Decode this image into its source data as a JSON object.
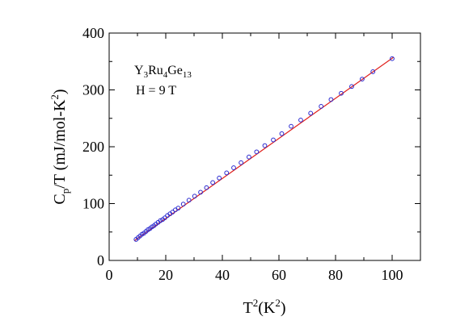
{
  "chart_data": {
    "type": "scatter",
    "xlabel": {
      "base": "T",
      "sup1": "2",
      "mid": "(K",
      "sup2": "2",
      "end": ")"
    },
    "ylabel": {
      "base": "C",
      "sub1": "p",
      "mid": "/T (mJ/mol-K",
      "sup1": "2",
      "end": ")"
    },
    "annotation": {
      "line1": {
        "p1": "Y",
        "s1": "3",
        "p2": "Ru",
        "s2": "4",
        "p3": "Ge",
        "s3": "13"
      },
      "line2": "H = 9 T"
    },
    "xlim": [
      0,
      110
    ],
    "ylim": [
      0,
      400
    ],
    "xticks": [
      0,
      20,
      40,
      60,
      80,
      100
    ],
    "yticks": [
      0,
      100,
      200,
      300,
      400
    ],
    "grid": false,
    "series": [
      {
        "marker": "open-circle",
        "color": "#2a2ad0",
        "x": [
          9.5,
          10.2,
          10.9,
          11.6,
          12.3,
          13.0,
          13.7,
          14.4,
          15.1,
          15.8,
          16.5,
          17.3,
          18.1,
          18.9,
          19.7,
          20.6,
          21.5,
          22.4,
          23.4,
          24.4,
          26.2,
          28.2,
          30.2,
          32.3,
          34.4,
          36.6,
          38.9,
          41.5,
          44.0,
          46.6,
          49.4,
          52.1,
          55.0,
          58.0,
          61.0,
          64.3,
          67.7,
          71.2,
          74.9,
          78.4,
          82.0,
          85.7,
          89.4,
          93.2,
          100.0
        ],
        "y": [
          37,
          40,
          43,
          46,
          48,
          51,
          54,
          56,
          59,
          61,
          64,
          67,
          70,
          72,
          75,
          79,
          82,
          85,
          89,
          92,
          99,
          106,
          113,
          120,
          128,
          137,
          145,
          154,
          163,
          172,
          182,
          191,
          202,
          212,
          223,
          236,
          247,
          259,
          271,
          283,
          294,
          306,
          319,
          332,
          355
        ]
      }
    ],
    "fit": {
      "color": "#e0201c",
      "x": [
        9.0,
        100.5
      ],
      "y": [
        35.0,
        357.5
      ]
    }
  }
}
